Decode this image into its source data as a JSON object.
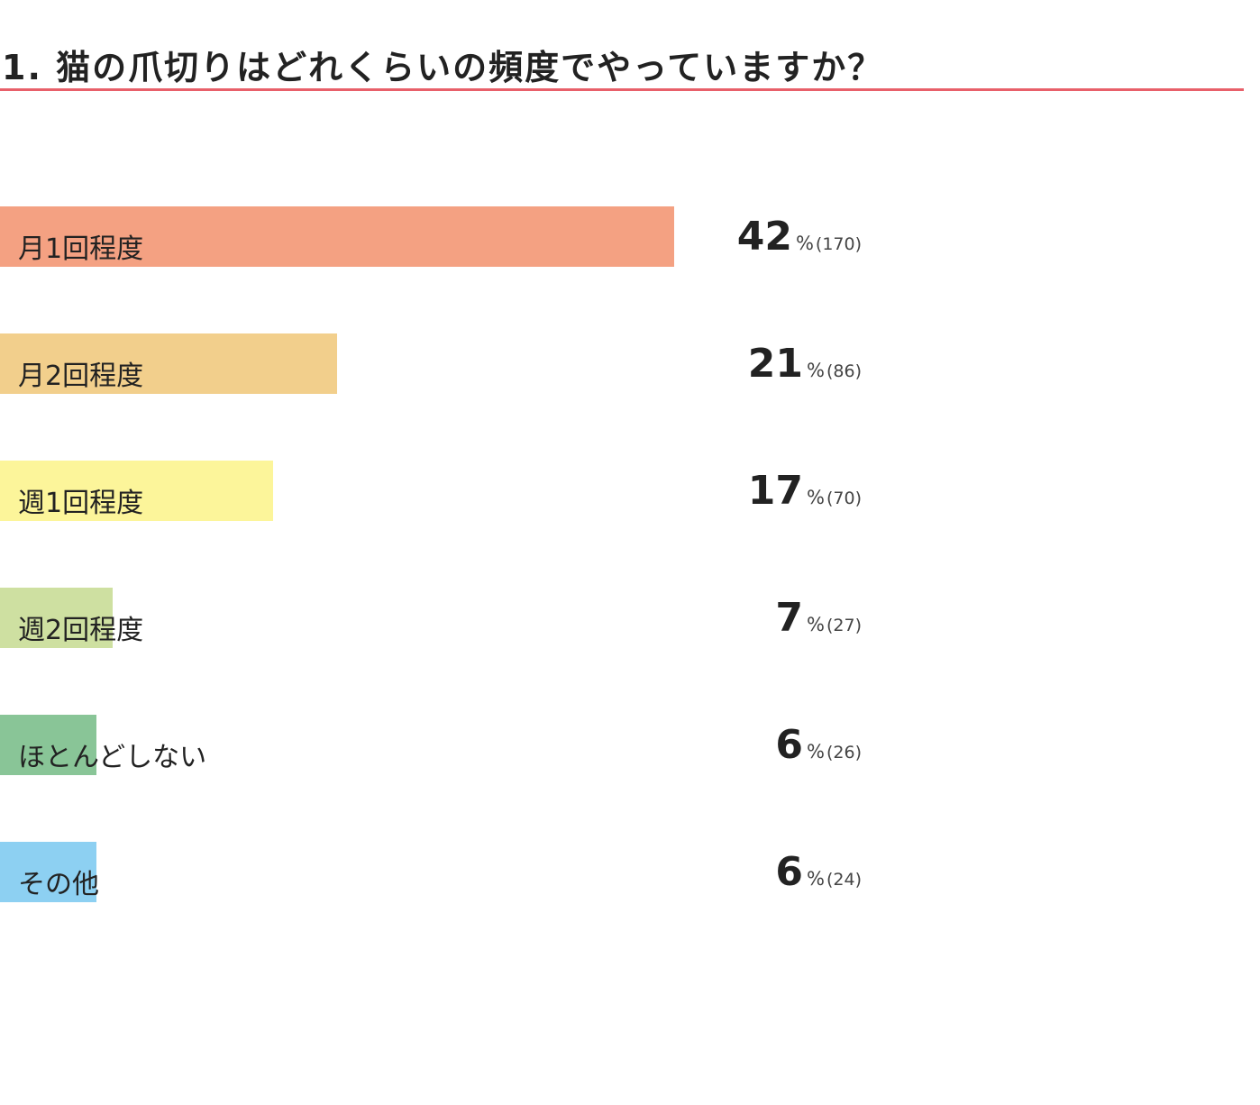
{
  "chart_data": {
    "type": "bar",
    "orientation": "horizontal",
    "title": "1. 猫の爪切りはどれくらいの頻度でやっていますか？",
    "percent_sign": "%",
    "categories": [
      "月1回程度",
      "月2回程度",
      "週1回程度",
      "週2回程度",
      "ほとんどしない",
      "その他"
    ],
    "values": [
      42,
      21,
      17,
      7,
      6,
      6
    ],
    "counts": [
      "(170)",
      "(86)",
      "(70)",
      "(27)",
      "(26)",
      "(24)"
    ],
    "colors": [
      "#f4a182",
      "#f2cf8c",
      "#fcf59a",
      "#cee0a1",
      "#89c597",
      "#8dd0f2"
    ],
    "title_rule_color": "#e8606a",
    "xlim": [
      0,
      42
    ]
  }
}
